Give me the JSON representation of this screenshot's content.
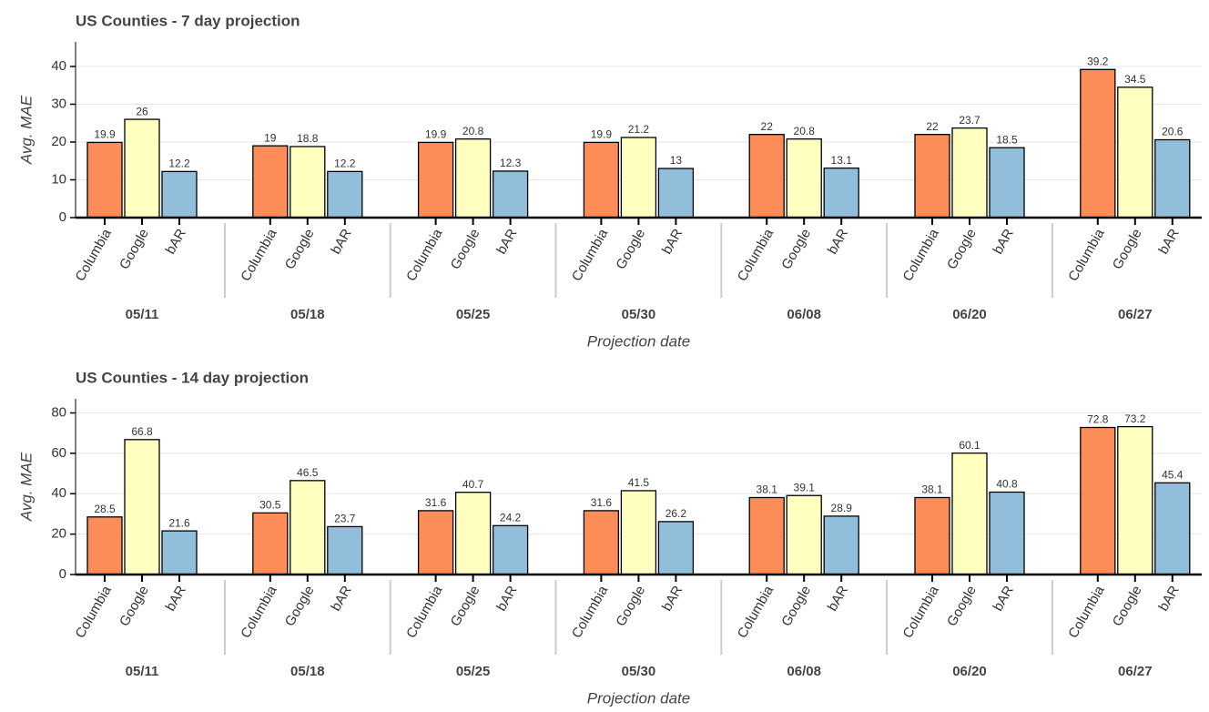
{
  "chart_data": [
    {
      "type": "bar",
      "title": "US Counties - 7 day projection",
      "y_label": "Avg. MAE",
      "x_label": "Projection date",
      "categories": [
        "05/11",
        "05/18",
        "05/25",
        "05/30",
        "06/08",
        "06/20",
        "06/27"
      ],
      "series": [
        {
          "name": "Columbia",
          "color": "#fc8d59",
          "values": [
            19.9,
            19,
            19.9,
            19.9,
            22,
            22,
            39.2
          ]
        },
        {
          "name": "Google",
          "color": "#ffffbf",
          "values": [
            26,
            18.8,
            20.8,
            21.2,
            20.8,
            23.7,
            34.5
          ]
        },
        {
          "name": "bAR",
          "color": "#91bfdb",
          "values": [
            12.2,
            12.2,
            12.3,
            13,
            13.1,
            18.5,
            20.6
          ]
        }
      ],
      "ylim": [
        0,
        46.5
      ],
      "yticks": [
        0,
        10,
        20,
        30,
        40
      ],
      "grid": true
    },
    {
      "type": "bar",
      "title": "US Counties - 14 day projection",
      "y_label": "Avg. MAE",
      "x_label": "Projection date",
      "categories": [
        "05/11",
        "05/18",
        "05/25",
        "05/30",
        "06/08",
        "06/20",
        "06/27"
      ],
      "series": [
        {
          "name": "Columbia",
          "color": "#fc8d59",
          "values": [
            28.5,
            30.5,
            31.6,
            31.6,
            38.1,
            38.1,
            72.8
          ]
        },
        {
          "name": "Google",
          "color": "#ffffbf",
          "values": [
            66.8,
            46.5,
            40.7,
            41.5,
            39.1,
            60.1,
            73.2
          ]
        },
        {
          "name": "bAR",
          "color": "#91bfdb",
          "values": [
            21.6,
            23.7,
            24.2,
            26.2,
            28.9,
            40.8,
            45.4
          ]
        }
      ],
      "ylim": [
        0,
        87
      ],
      "yticks": [
        0,
        20,
        40,
        60,
        80
      ],
      "grid": true
    }
  ]
}
